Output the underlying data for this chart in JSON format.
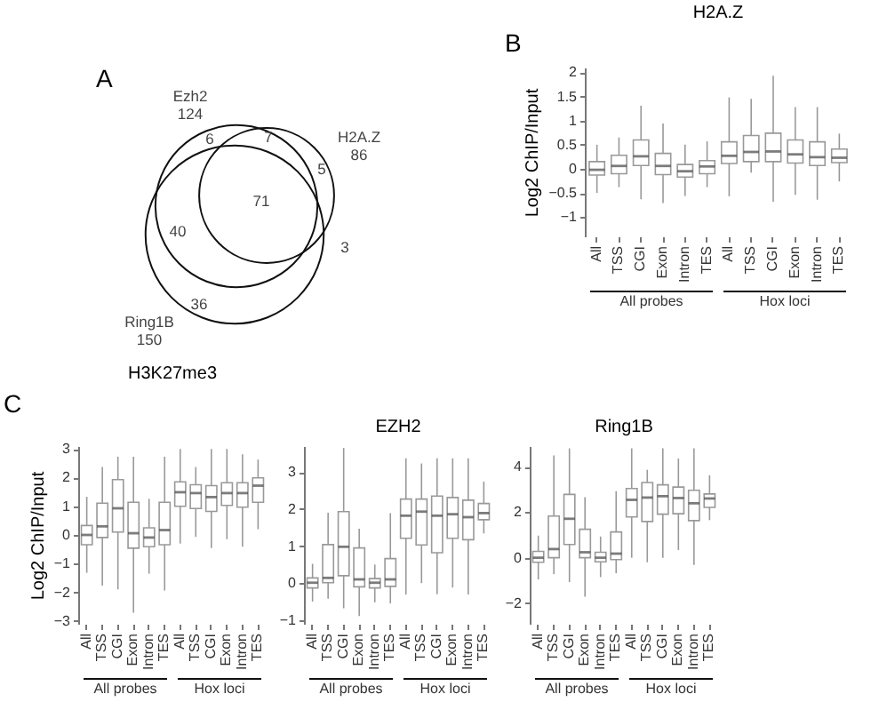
{
  "chart_data": [
    {
      "type": "other",
      "categories": [
        "Ezh2",
        "H2A.Z",
        "Ring1B"
      ],
      "values": [
        124,
        86,
        150
      ],
      "data_labels": true,
      "annotations": [
        "A",
        "6",
        "7",
        "5",
        "71",
        "40",
        "3",
        "36"
      ]
    },
    {
      "type": "box",
      "title": "H2A.Z",
      "ylabel": "Log2 ChIP/Input",
      "categories": [
        "All",
        "TSS",
        "CGI",
        "Exon",
        "Intron",
        "TES",
        "All",
        "TSS",
        "CGI",
        "Exon",
        "Intron",
        "TES"
      ],
      "ylim": [
        -1.4,
        2.1
      ],
      "yticks": [
        -1,
        -0.5,
        0,
        0.5,
        1,
        1.5,
        2
      ],
      "annotations": [
        "B",
        "All probes",
        "Hox loci"
      ],
      "boxes": [
        {
          "low": -0.5,
          "q1": -0.13,
          "median": -0.02,
          "q3": 0.15,
          "high": 0.5
        },
        {
          "low": -0.38,
          "q1": -0.1,
          "median": 0.06,
          "q3": 0.28,
          "high": 0.65
        },
        {
          "low": -0.63,
          "q1": 0.07,
          "median": 0.26,
          "q3": 0.6,
          "high": 1.31
        },
        {
          "low": -0.71,
          "q1": -0.12,
          "median": 0.06,
          "q3": 0.32,
          "high": 0.94
        },
        {
          "low": -0.56,
          "q1": -0.17,
          "median": -0.05,
          "q3": 0.09,
          "high": 0.5
        },
        {
          "low": -0.38,
          "q1": -0.1,
          "median": 0.05,
          "q3": 0.17,
          "high": 0.57
        },
        {
          "low": -0.57,
          "q1": 0.11,
          "median": 0.27,
          "q3": 0.56,
          "high": 1.48
        },
        {
          "low": -0.08,
          "q1": 0.15,
          "median": 0.35,
          "q3": 0.69,
          "high": 1.45
        },
        {
          "low": -0.68,
          "q1": 0.15,
          "median": 0.36,
          "q3": 0.74,
          "high": 1.93
        },
        {
          "low": -0.54,
          "q1": 0.12,
          "median": 0.3,
          "q3": 0.6,
          "high": 1.28
        },
        {
          "low": -0.64,
          "q1": 0.07,
          "median": 0.24,
          "q3": 0.56,
          "high": 1.28
        },
        {
          "low": -0.26,
          "q1": 0.13,
          "median": 0.23,
          "q3": 0.41,
          "high": 0.73
        }
      ]
    },
    {
      "type": "box",
      "title": "H3K27me3",
      "ylabel": "Log2 ChIP/Input",
      "categories": [
        "All",
        "TSS",
        "CGI",
        "Exon",
        "Intron",
        "TES",
        "All",
        "TSS",
        "CGI",
        "Exon",
        "Intron",
        "TES"
      ],
      "ylim": [
        -3.1,
        3.1
      ],
      "yticks": [
        -3,
        -2,
        -1,
        0,
        1,
        2,
        3
      ],
      "annotations": [
        "C",
        "All probes",
        "Hox loci"
      ],
      "boxes": [
        {
          "low": -1.32,
          "q1": -0.34,
          "median": 0,
          "q3": 0.33,
          "high": 1.33
        },
        {
          "low": -1.77,
          "q1": -0.09,
          "median": 0.3,
          "q3": 1.11,
          "high": 2.37
        },
        {
          "low": -1.9,
          "q1": 0.1,
          "median": 0.93,
          "q3": 1.93,
          "high": 2.73
        },
        {
          "low": -2.71,
          "q1": -0.46,
          "median": 0.06,
          "q3": 1.14,
          "high": 2.73
        },
        {
          "low": -1.35,
          "q1": -0.41,
          "median": -0.09,
          "q3": 0.25,
          "high": 1.26
        },
        {
          "low": -1.94,
          "q1": -0.34,
          "median": 0.17,
          "q3": 1.14,
          "high": 2.73
        },
        {
          "low": -0.3,
          "q1": 1.0,
          "median": 1.49,
          "q3": 1.85,
          "high": 3
        },
        {
          "low": -0.07,
          "q1": 0.92,
          "median": 1.46,
          "q3": 1.75,
          "high": 2.37
        },
        {
          "low": -0.46,
          "q1": 0.82,
          "median": 1.32,
          "q3": 1.72,
          "high": 3
        },
        {
          "low": -0.15,
          "q1": 1.03,
          "median": 1.46,
          "q3": 1.82,
          "high": 3
        },
        {
          "low": -0.41,
          "q1": 0.97,
          "median": 1.46,
          "q3": 1.82,
          "high": 2.81
        },
        {
          "low": 0.2,
          "q1": 1.14,
          "median": 1.72,
          "q3": 1.99,
          "high": 2.63
        }
      ]
    },
    {
      "type": "box",
      "title": "EZH2",
      "categories": [
        "All",
        "TSS",
        "CGI",
        "Exon",
        "Intron",
        "TES",
        "All",
        "TSS",
        "CGI",
        "Exon",
        "Intron",
        "TES"
      ],
      "ylim": [
        -1.1,
        3.7
      ],
      "yticks": [
        -1,
        0,
        1,
        2,
        3
      ],
      "annotations": [
        "All probes",
        "Hox loci"
      ],
      "boxes": [
        {
          "low": -0.5,
          "q1": -0.13,
          "median": 0.01,
          "q3": 0.14,
          "high": 0.52
        },
        {
          "low": -0.42,
          "q1": 0.01,
          "median": 0.14,
          "q3": 1.04,
          "high": 1.9
        },
        {
          "low": -0.68,
          "q1": 0.2,
          "median": 0.98,
          "q3": 1.93,
          "high": 3.65
        },
        {
          "low": -0.89,
          "q1": -0.1,
          "median": 0.1,
          "q3": 0.95,
          "high": 1.47
        },
        {
          "low": -0.52,
          "q1": -0.13,
          "median": 0.01,
          "q3": 0.12,
          "high": 0.5
        },
        {
          "low": -0.55,
          "q1": -0.09,
          "median": 0.1,
          "q3": 0.66,
          "high": 1.89
        },
        {
          "low": -0.31,
          "q1": 1.21,
          "median": 1.82,
          "q3": 2.27,
          "high": 3.37
        },
        {
          "low": 0,
          "q1": 1.03,
          "median": 1.93,
          "q3": 2.27,
          "high": 3.23
        },
        {
          "low": -0.3,
          "q1": 0.82,
          "median": 1.82,
          "q3": 2.35,
          "high": 3.37
        },
        {
          "low": -0.12,
          "q1": 1.21,
          "median": 1.86,
          "q3": 2.31,
          "high": 3.37
        },
        {
          "low": -0.31,
          "q1": 1.17,
          "median": 1.78,
          "q3": 2.24,
          "high": 3.37
        },
        {
          "low": 1.34,
          "q1": 1.71,
          "median": 1.89,
          "q3": 2.15,
          "high": 2.74
        }
      ]
    },
    {
      "type": "box",
      "title": "Ring1B",
      "categories": [
        "All",
        "TSS",
        "CGI",
        "Exon",
        "Intron",
        "TES",
        "All",
        "TSS",
        "CGI",
        "Exon",
        "Intron",
        "TES"
      ],
      "ylim": [
        -2.9,
        4.9
      ],
      "yticks": [
        -2,
        0,
        2,
        4
      ],
      "annotations": [
        "All probes",
        "Hox loci"
      ],
      "boxes": [
        {
          "low": -0.95,
          "q1": -0.2,
          "median": 0,
          "q3": 0.28,
          "high": 0.97
        },
        {
          "low": -0.72,
          "q1": 0,
          "median": 0.38,
          "q3": 1.83,
          "high": 4.49
        },
        {
          "low": -1.07,
          "q1": 0.58,
          "median": 1.71,
          "q3": 2.78,
          "high": 4.8
        },
        {
          "low": -1.71,
          "q1": 0,
          "median": 0.24,
          "q3": 1.25,
          "high": 2.66
        },
        {
          "low": -0.85,
          "q1": -0.18,
          "median": 0,
          "q3": 0.24,
          "high": 0.93
        },
        {
          "low": -0.68,
          "q1": -0.08,
          "median": 0.18,
          "q3": 1.13,
          "high": 2.92
        },
        {
          "low": 0,
          "q1": 1.79,
          "median": 2.54,
          "q3": 3.04,
          "high": 4.8
        },
        {
          "low": -0.2,
          "q1": 1.59,
          "median": 2.64,
          "q3": 3.3,
          "high": 3.86
        },
        {
          "low": 0,
          "q1": 1.91,
          "median": 2.7,
          "q3": 3.2,
          "high": 4.8
        },
        {
          "low": 0.34,
          "q1": 1.93,
          "median": 2.62,
          "q3": 3.1,
          "high": 4.35
        },
        {
          "low": -0.32,
          "q1": 1.63,
          "median": 2.39,
          "q3": 2.96,
          "high": 4.8
        },
        {
          "low": 1.65,
          "q1": 2.21,
          "median": 2.6,
          "q3": 2.8,
          "high": 3.62
        }
      ]
    }
  ]
}
